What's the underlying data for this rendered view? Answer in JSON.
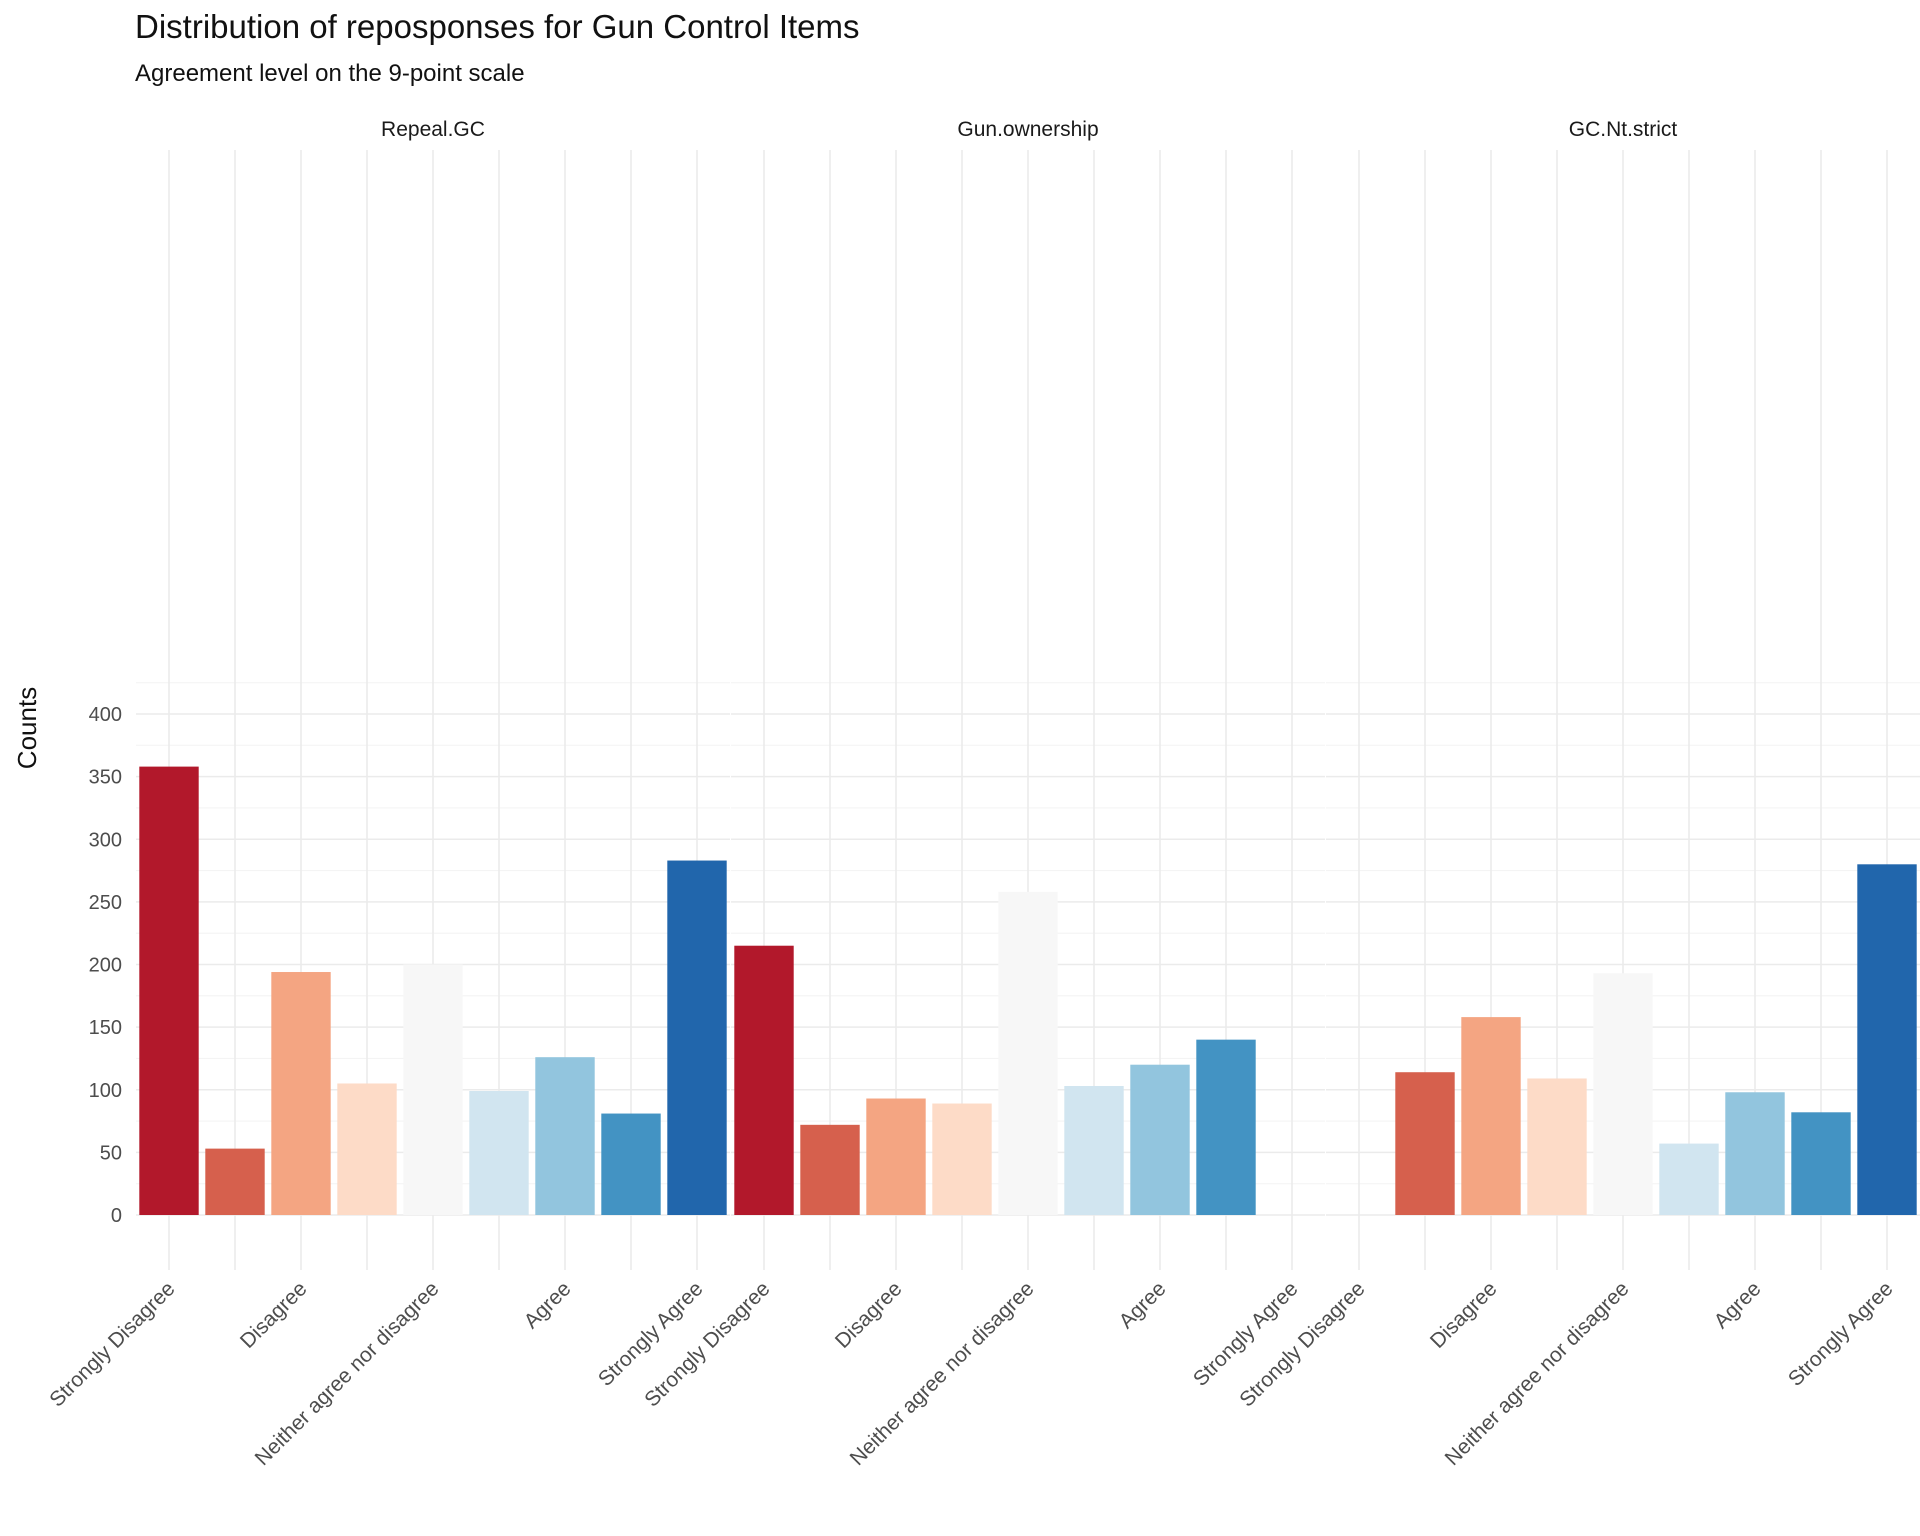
{
  "chart_data": {
    "type": "bar",
    "title": "Distribution of reposponses for Gun Control Items",
    "subtitle": "Agreement level on the 9-point scale",
    "xlabel": "",
    "ylabel": "Counts",
    "ylim": [
      0,
      425
    ],
    "yticks": [
      0,
      50,
      100,
      150,
      200,
      250,
      300,
      350,
      400
    ],
    "grid": true,
    "legend": "none",
    "levels": [
      1,
      2,
      3,
      4,
      5,
      6,
      7,
      8,
      9
    ],
    "tick_labels": [
      "Strongly Disagree",
      "Disagree",
      "Neither agree nor disagree",
      "Agree",
      "Strongly Agree"
    ],
    "tick_levels": [
      1,
      3,
      5,
      7,
      9
    ],
    "colors": [
      "#b2182b",
      "#d6604d",
      "#f4a582",
      "#fddbc7",
      "#f7f7f7",
      "#d1e5f0",
      "#92c5de",
      "#4393c3",
      "#2166ac"
    ],
    "facets": [
      {
        "name": "Repeal.GC",
        "values": [
          358,
          53,
          194,
          105,
          200,
          99,
          126,
          81,
          283
        ]
      },
      {
        "name": "Gun.ownership",
        "values": [
          215,
          72,
          93,
          89,
          258,
          103,
          120,
          140,
          0
        ]
      },
      {
        "name": "GC.Nt.strict",
        "values": [
          0,
          114,
          158,
          109,
          193,
          57,
          98,
          82,
          280
        ]
      }
    ]
  }
}
